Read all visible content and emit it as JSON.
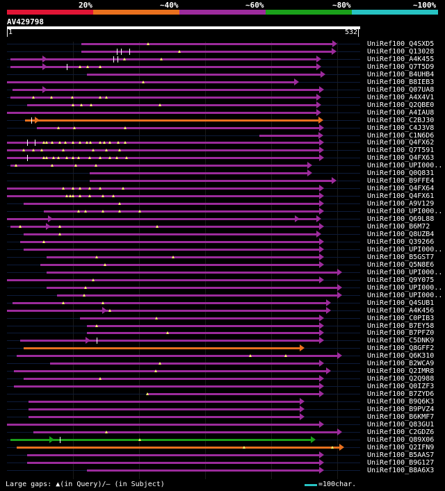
{
  "legend": {
    "labels": [
      "20%",
      "~40%",
      "~60%",
      "~80%",
      "~100%"
    ],
    "colors": [
      "#e01535",
      "#e8701e",
      "#9c2b9c",
      "#1aa01a",
      "#27c3c3"
    ]
  },
  "query": {
    "title": "AV429798",
    "start": "1",
    "end": "532",
    "length": 532
  },
  "hits": [
    {
      "label": "UniRef100_Q4SXD5",
      "start": 112,
      "end": 497,
      "color": "purple",
      "marks": [
        [
          213,
          "q"
        ]
      ]
    },
    {
      "label": "UniRef100_Q13028",
      "start": 112,
      "end": 496,
      "color": "purple",
      "marks": [
        [
          165,
          "s"
        ],
        [
          172,
          "s"
        ],
        [
          184,
          "s"
        ],
        [
          260,
          "q"
        ]
      ]
    },
    {
      "label": "UniRef100_A4K455",
      "start": 5,
      "end": 473,
      "color": "purple",
      "marks": [
        [
          60,
          "a"
        ],
        [
          160,
          "s"
        ],
        [
          167,
          "s"
        ],
        [
          177,
          "q"
        ],
        [
          232,
          "q"
        ]
      ]
    },
    {
      "label": "UniRef100_Q7T5D9",
      "start": 5,
      "end": 473,
      "color": "purple",
      "marks": [
        [
          60,
          "a"
        ],
        [
          90,
          "s"
        ],
        [
          110,
          "q"
        ],
        [
          122,
          "q"
        ],
        [
          140,
          "q"
        ]
      ]
    },
    {
      "label": "UniRef100_B4UHB4",
      "start": 120,
      "end": 480,
      "color": "purple",
      "marks": []
    },
    {
      "label": "UniRef100_B8IEB3",
      "start": 0,
      "end": 440,
      "color": "purple",
      "marks": [
        [
          205,
          "q"
        ]
      ]
    },
    {
      "label": "UniRef100_Q07UA8",
      "start": 8,
      "end": 478,
      "color": "purple",
      "marks": [
        [
          60,
          "a"
        ]
      ]
    },
    {
      "label": "UniRef100_A4X4V1",
      "start": 5,
      "end": 473,
      "color": "purple",
      "marks": [
        [
          40,
          "q"
        ],
        [
          67,
          "q"
        ],
        [
          98,
          "q"
        ],
        [
          140,
          "q"
        ],
        [
          150,
          "q"
        ]
      ]
    },
    {
      "label": "UniRef100_Q2QBE0",
      "start": 30,
      "end": 473,
      "color": "purple",
      "marks": [
        [
          99,
          "q"
        ],
        [
          112,
          "q"
        ],
        [
          127,
          "q"
        ],
        [
          230,
          "q"
        ]
      ]
    },
    {
      "label": "UniRef100_A4IAU8",
      "start": 0,
      "end": 473,
      "color": "purple",
      "marks": []
    },
    {
      "label": "UniRef100_C2BJ30",
      "start": 27,
      "end": 477,
      "color": "orange",
      "marks": [
        [
          37,
          "s"
        ],
        [
          48,
          "a"
        ]
      ]
    },
    {
      "label": "UniRef100_C4J3V8",
      "start": 45,
      "end": 478,
      "color": "purple",
      "marks": [
        [
          78,
          "q"
        ],
        [
          102,
          "q"
        ],
        [
          178,
          "q"
        ]
      ]
    },
    {
      "label": "UniRef100_C1N6D6",
      "start": 380,
      "end": 476,
      "color": "purple",
      "marks": []
    },
    {
      "label": "UniRef100_Q4FX62",
      "start": 0,
      "end": 478,
      "color": "purple",
      "marks": [
        [
          30,
          "s"
        ],
        [
          42,
          "s"
        ],
        [
          56,
          "q"
        ],
        [
          60,
          "q"
        ],
        [
          68,
          "q"
        ],
        [
          80,
          "q"
        ],
        [
          88,
          "q"
        ],
        [
          100,
          "q"
        ],
        [
          110,
          "q"
        ],
        [
          120,
          "q"
        ],
        [
          126,
          "q"
        ],
        [
          140,
          "q"
        ],
        [
          147,
          "q"
        ],
        [
          155,
          "q"
        ],
        [
          168,
          "q"
        ],
        [
          178,
          "q"
        ]
      ]
    },
    {
      "label": "UniRef100_Q7T591",
      "start": 0,
      "end": 478,
      "color": "purple",
      "marks": [
        [
          25,
          "q"
        ],
        [
          40,
          "q"
        ],
        [
          52,
          "q"
        ],
        [
          85,
          "q"
        ],
        [
          130,
          "q"
        ],
        [
          150,
          "q"
        ],
        [
          170,
          "q"
        ]
      ]
    },
    {
      "label": "UniRef100_Q4FX63",
      "start": 0,
      "end": 478,
      "color": "purple",
      "marks": [
        [
          30,
          "s"
        ],
        [
          56,
          "q"
        ],
        [
          60,
          "q"
        ],
        [
          70,
          "q"
        ],
        [
          78,
          "q"
        ],
        [
          90,
          "q"
        ],
        [
          100,
          "q"
        ],
        [
          108,
          "q"
        ],
        [
          125,
          "q"
        ],
        [
          140,
          "q"
        ],
        [
          155,
          "q"
        ],
        [
          165,
          "q"
        ],
        [
          180,
          "q"
        ]
      ]
    },
    {
      "label": "UniRef100_UPI000..",
      "start": 5,
      "end": 460,
      "color": "purple",
      "marks": [
        [
          14,
          "q"
        ],
        [
          68,
          "q"
        ],
        [
          104,
          "q"
        ],
        [
          134,
          "q"
        ]
      ]
    },
    {
      "label": "UniRef100_Q0Q831",
      "start": 125,
      "end": 460,
      "color": "purple",
      "marks": []
    },
    {
      "label": "UniRef100_B9FFE4",
      "start": 125,
      "end": 496,
      "color": "purple",
      "marks": []
    },
    {
      "label": "UniRef100_Q4FX64",
      "start": 0,
      "end": 478,
      "color": "purple",
      "marks": [
        [
          85,
          "q"
        ],
        [
          100,
          "q"
        ],
        [
          110,
          "q"
        ],
        [
          125,
          "q"
        ],
        [
          140,
          "q"
        ],
        [
          175,
          "q"
        ]
      ]
    },
    {
      "label": "UniRef100_Q4FX61",
      "start": 0,
      "end": 478,
      "color": "purple",
      "marks": [
        [
          90,
          "q"
        ],
        [
          95,
          "q"
        ],
        [
          100,
          "q"
        ],
        [
          110,
          "q"
        ],
        [
          125,
          "q"
        ],
        [
          145,
          "q"
        ],
        [
          160,
          "q"
        ]
      ]
    },
    {
      "label": "UniRef100_A9V129",
      "start": 25,
      "end": 478,
      "color": "purple",
      "marks": [
        [
          170,
          "q"
        ]
      ]
    },
    {
      "label": "UniRef100_UPI000..",
      "start": 55,
      "end": 478,
      "color": "purple",
      "marks": [
        [
          108,
          "q"
        ],
        [
          118,
          "q"
        ],
        [
          145,
          "q"
        ],
        [
          170,
          "q"
        ],
        [
          200,
          "q"
        ]
      ]
    },
    {
      "label": "UniRef100_Q69L88",
      "start": 0,
      "end": 473,
      "color": "purple",
      "marks": [
        [
          68,
          "a"
        ],
        [
          440,
          "a"
        ]
      ]
    },
    {
      "label": "UniRef100_B6M72",
      "start": 5,
      "end": 478,
      "color": "purple",
      "marks": [
        [
          20,
          "q"
        ],
        [
          65,
          "a"
        ],
        [
          80,
          "q"
        ],
        [
          226,
          "q"
        ]
      ]
    },
    {
      "label": "UniRef100_Q8UZB4",
      "start": 25,
      "end": 473,
      "color": "purple",
      "marks": [
        [
          80,
          "q"
        ]
      ]
    },
    {
      "label": "UniRef100_Q39266",
      "start": 20,
      "end": 478,
      "color": "purple",
      "marks": [
        [
          55,
          "q"
        ]
      ]
    },
    {
      "label": "UniRef100_UPI000..",
      "start": 25,
      "end": 478,
      "color": "purple",
      "marks": []
    },
    {
      "label": "UniRef100_B5GST7",
      "start": 60,
      "end": 478,
      "color": "purple",
      "marks": [
        [
          135,
          "q"
        ],
        [
          250,
          "q"
        ]
      ]
    },
    {
      "label": "UniRef100_Q5N8E6",
      "start": 50,
      "end": 478,
      "color": "purple",
      "marks": [
        [
          148,
          "q"
        ]
      ]
    },
    {
      "label": "UniRef100_UPI000..",
      "start": 60,
      "end": 505,
      "color": "purple",
      "marks": []
    },
    {
      "label": "UniRef100_Q9Y075",
      "start": 0,
      "end": 478,
      "color": "purple",
      "marks": [
        [
          130,
          "q"
        ]
      ]
    },
    {
      "label": "UniRef100_UPI000..",
      "start": 60,
      "end": 505,
      "color": "purple",
      "marks": [
        [
          118,
          "q"
        ]
      ]
    },
    {
      "label": "UniRef100_UPI000..",
      "start": 75,
      "end": 505,
      "color": "purple",
      "marks": [
        [
          116,
          "q"
        ]
      ]
    },
    {
      "label": "UniRef100_Q4SUB1",
      "start": 8,
      "end": 488,
      "color": "purple",
      "marks": [
        [
          85,
          "q"
        ],
        [
          145,
          "q"
        ]
      ]
    },
    {
      "label": "UniRef100_A4K456",
      "start": 0,
      "end": 488,
      "color": "purple",
      "marks": [
        [
          150,
          "a"
        ],
        [
          155,
          "q"
        ]
      ]
    },
    {
      "label": "UniRef100_C0PIB3",
      "start": 110,
      "end": 478,
      "color": "purple",
      "marks": [
        [
          225,
          "q"
        ]
      ]
    },
    {
      "label": "UniRef100_B7EY58",
      "start": 120,
      "end": 478,
      "color": "purple",
      "marks": [
        [
          135,
          "q"
        ]
      ]
    },
    {
      "label": "UniRef100_B7PFZ0",
      "start": 120,
      "end": 478,
      "color": "purple",
      "marks": [
        [
          242,
          "q"
        ]
      ]
    },
    {
      "label": "UniRef100_C5DNK9",
      "start": 20,
      "end": 478,
      "color": "purple",
      "marks": [
        [
          125,
          "a"
        ],
        [
          135,
          "s"
        ]
      ]
    },
    {
      "label": "UniRef100_Q8GFF2",
      "start": 25,
      "end": 448,
      "color": "orange",
      "marks": []
    },
    {
      "label": "UniRef100_Q6K310",
      "start": 15,
      "end": 505,
      "color": "purple",
      "marks": [
        [
          367,
          "q"
        ],
        [
          420,
          "q"
        ]
      ]
    },
    {
      "label": "UniRef100_B2WCA9",
      "start": 65,
      "end": 478,
      "color": "purple",
      "marks": [
        [
          230,
          "q"
        ]
      ]
    },
    {
      "label": "UniRef100_Q2IMR8",
      "start": 10,
      "end": 488,
      "color": "purple",
      "marks": [
        [
          224,
          "q"
        ]
      ]
    },
    {
      "label": "UniRef100_Q2Q988",
      "start": 25,
      "end": 478,
      "color": "purple",
      "marks": [
        [
          140,
          "q"
        ]
      ]
    },
    {
      "label": "UniRef100_Q0IZF3",
      "start": 10,
      "end": 478,
      "color": "purple",
      "marks": []
    },
    {
      "label": "UniRef100_B7ZYD6",
      "start": 210,
      "end": 478,
      "color": "purple",
      "marks": [
        [
          212,
          "q"
        ]
      ]
    },
    {
      "label": "UniRef100_B9Q6K3",
      "start": 32,
      "end": 448,
      "color": "purple",
      "marks": []
    },
    {
      "label": "UniRef100_B9PVZ4",
      "start": 32,
      "end": 448,
      "color": "purple",
      "marks": []
    },
    {
      "label": "UniRef100_B6KMF7",
      "start": 32,
      "end": 448,
      "color": "purple",
      "marks": []
    },
    {
      "label": "UniRef100_Q83GU1",
      "start": 0,
      "end": 478,
      "color": "purple",
      "marks": []
    },
    {
      "label": "UniRef100_C2GDZ6",
      "start": 40,
      "end": 505,
      "color": "purple",
      "marks": [
        [
          150,
          "q"
        ]
      ]
    },
    {
      "label": "UniRef100_Q89X06",
      "start": 5,
      "end": 465,
      "color": "green",
      "marks": [
        [
          70,
          "a"
        ],
        [
          80,
          "s"
        ],
        [
          200,
          "q"
        ]
      ]
    },
    {
      "label": "UniRef100_Q2IFN9",
      "start": 15,
      "end": 508,
      "color": "orange",
      "marks": [
        [
          357,
          "q"
        ],
        [
          490,
          "q"
        ]
      ]
    },
    {
      "label": "UniRef100_B5AAS7",
      "start": 30,
      "end": 478,
      "color": "purple",
      "marks": []
    },
    {
      "label": "UniRef100_B9G127",
      "start": 30,
      "end": 478,
      "color": "purple",
      "marks": []
    },
    {
      "label": "UniRef100_B8A6X3",
      "start": 120,
      "end": 478,
      "color": "purple",
      "marks": []
    }
  ],
  "footer": {
    "gaps_text": "Large gaps: ▲(in Query)/– (in Subject)",
    "scale_text": "=100char."
  }
}
